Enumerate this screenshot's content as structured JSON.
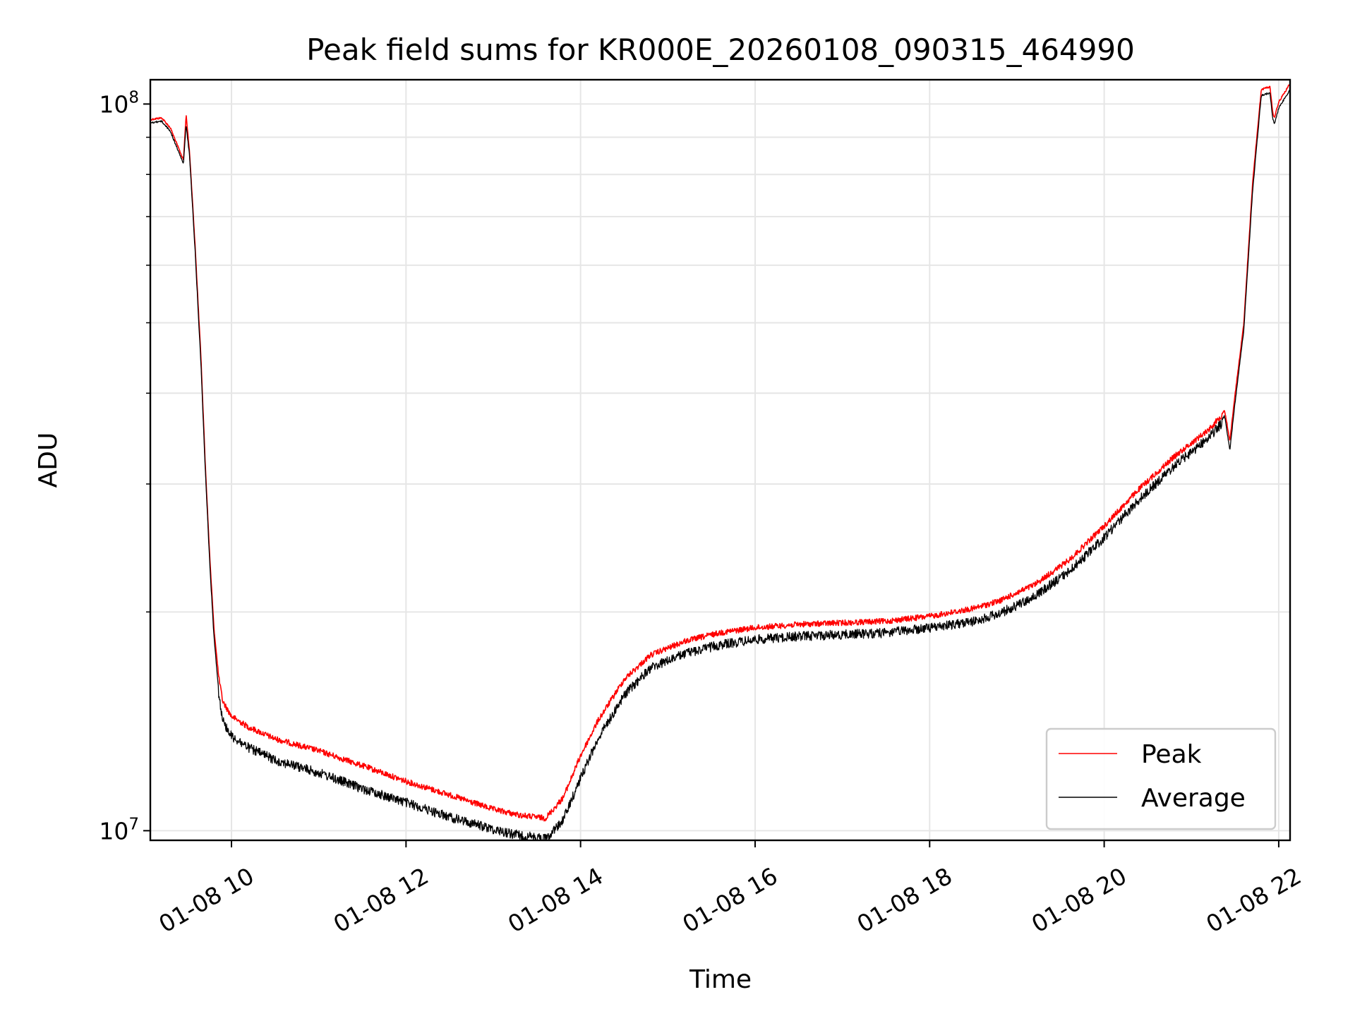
{
  "chart_data": {
    "type": "line",
    "title": "Peak field sums for KR000E_20260108_090315_464990",
    "xlabel": "Time",
    "ylabel": "ADU",
    "yscale": "log",
    "ylim": [
      9700000,
      108000000
    ],
    "xlim_hours": [
      9.07,
      22.13
    ],
    "x_ticks": [
      {
        "hour": 10,
        "label": "01-08 10"
      },
      {
        "hour": 12,
        "label": "01-08 12"
      },
      {
        "hour": 14,
        "label": "01-08 14"
      },
      {
        "hour": 16,
        "label": "01-08 16"
      },
      {
        "hour": 18,
        "label": "01-08 18"
      },
      {
        "hour": 20,
        "label": "01-08 20"
      },
      {
        "hour": 22,
        "label": "01-08 22"
      }
    ],
    "y_ticks": [
      {
        "value": 10000000,
        "base": "10",
        "exp": "7"
      },
      {
        "value": 100000000,
        "base": "10",
        "exp": "8"
      }
    ],
    "grid": true,
    "legend_position": "bottom-right",
    "series": [
      {
        "name": "Peak",
        "color": "#ff0000",
        "x_hours": [
          9.07,
          9.2,
          9.3,
          9.38,
          9.45,
          9.48,
          9.52,
          9.58,
          9.65,
          9.7,
          9.75,
          9.8,
          9.85,
          9.9,
          10.0,
          10.2,
          10.5,
          11.0,
          11.5,
          12.0,
          12.5,
          13.0,
          13.3,
          13.6,
          13.8,
          14.0,
          14.2,
          14.5,
          14.8,
          15.2,
          15.6,
          16.0,
          16.5,
          17.0,
          17.5,
          18.0,
          18.5,
          18.8,
          19.2,
          19.6,
          20.0,
          20.4,
          20.8,
          21.2,
          21.38,
          21.44,
          21.5,
          21.6,
          21.7,
          21.8,
          21.9,
          21.93,
          21.95,
          22.0,
          22.13
        ],
        "values": [
          95500000,
          96000000,
          93000000,
          88000000,
          84000000,
          97000000,
          86000000,
          65000000,
          45000000,
          32000000,
          24000000,
          19000000,
          16500000,
          15200000,
          14500000,
          14000000,
          13500000,
          13000000,
          12400000,
          11800000,
          11300000,
          10800000,
          10600000,
          10500000,
          11200000,
          12800000,
          14300000,
          16300000,
          17600000,
          18400000,
          18900000,
          19200000,
          19400000,
          19500000,
          19600000,
          19900000,
          20400000,
          20900000,
          22000000,
          23800000,
          26500000,
          29800000,
          33000000,
          36000000,
          38000000,
          34500000,
          40000000,
          50000000,
          78000000,
          105000000,
          106000000,
          98000000,
          96000000,
          101000000,
          107000000
        ]
      },
      {
        "name": "Average",
        "color": "#000000",
        "x_hours": [
          9.07,
          9.2,
          9.3,
          9.38,
          9.45,
          9.48,
          9.52,
          9.58,
          9.65,
          9.7,
          9.75,
          9.8,
          9.85,
          9.9,
          10.0,
          10.2,
          10.5,
          11.0,
          11.5,
          12.0,
          12.5,
          13.0,
          13.3,
          13.6,
          13.8,
          14.0,
          14.2,
          14.5,
          14.8,
          15.2,
          15.6,
          16.0,
          16.5,
          17.0,
          17.5,
          18.0,
          18.5,
          18.8,
          19.2,
          19.6,
          20.0,
          20.4,
          20.8,
          21.2,
          21.38,
          21.44,
          21.5,
          21.6,
          21.7,
          21.8,
          21.9,
          21.93,
          21.95,
          22.0,
          22.13
        ],
        "values": [
          94500000,
          95000000,
          92000000,
          87000000,
          83000000,
          94000000,
          85000000,
          64000000,
          44000000,
          31500000,
          23500000,
          18500000,
          15800000,
          14400000,
          13700000,
          13200000,
          12700000,
          12200000,
          11600000,
          11100000,
          10600000,
          10200000,
          10000000,
          9900000,
          10500000,
          12000000,
          13600000,
          15600000,
          17000000,
          17800000,
          18300000,
          18600000,
          18800000,
          18900000,
          19000000,
          19300000,
          19700000,
          20200000,
          21300000,
          23100000,
          25700000,
          29000000,
          32200000,
          35300000,
          37300000,
          33500000,
          39000000,
          49000000,
          76000000,
          103000000,
          104000000,
          96000000,
          94000000,
          99000000,
          105000000
        ]
      }
    ]
  }
}
